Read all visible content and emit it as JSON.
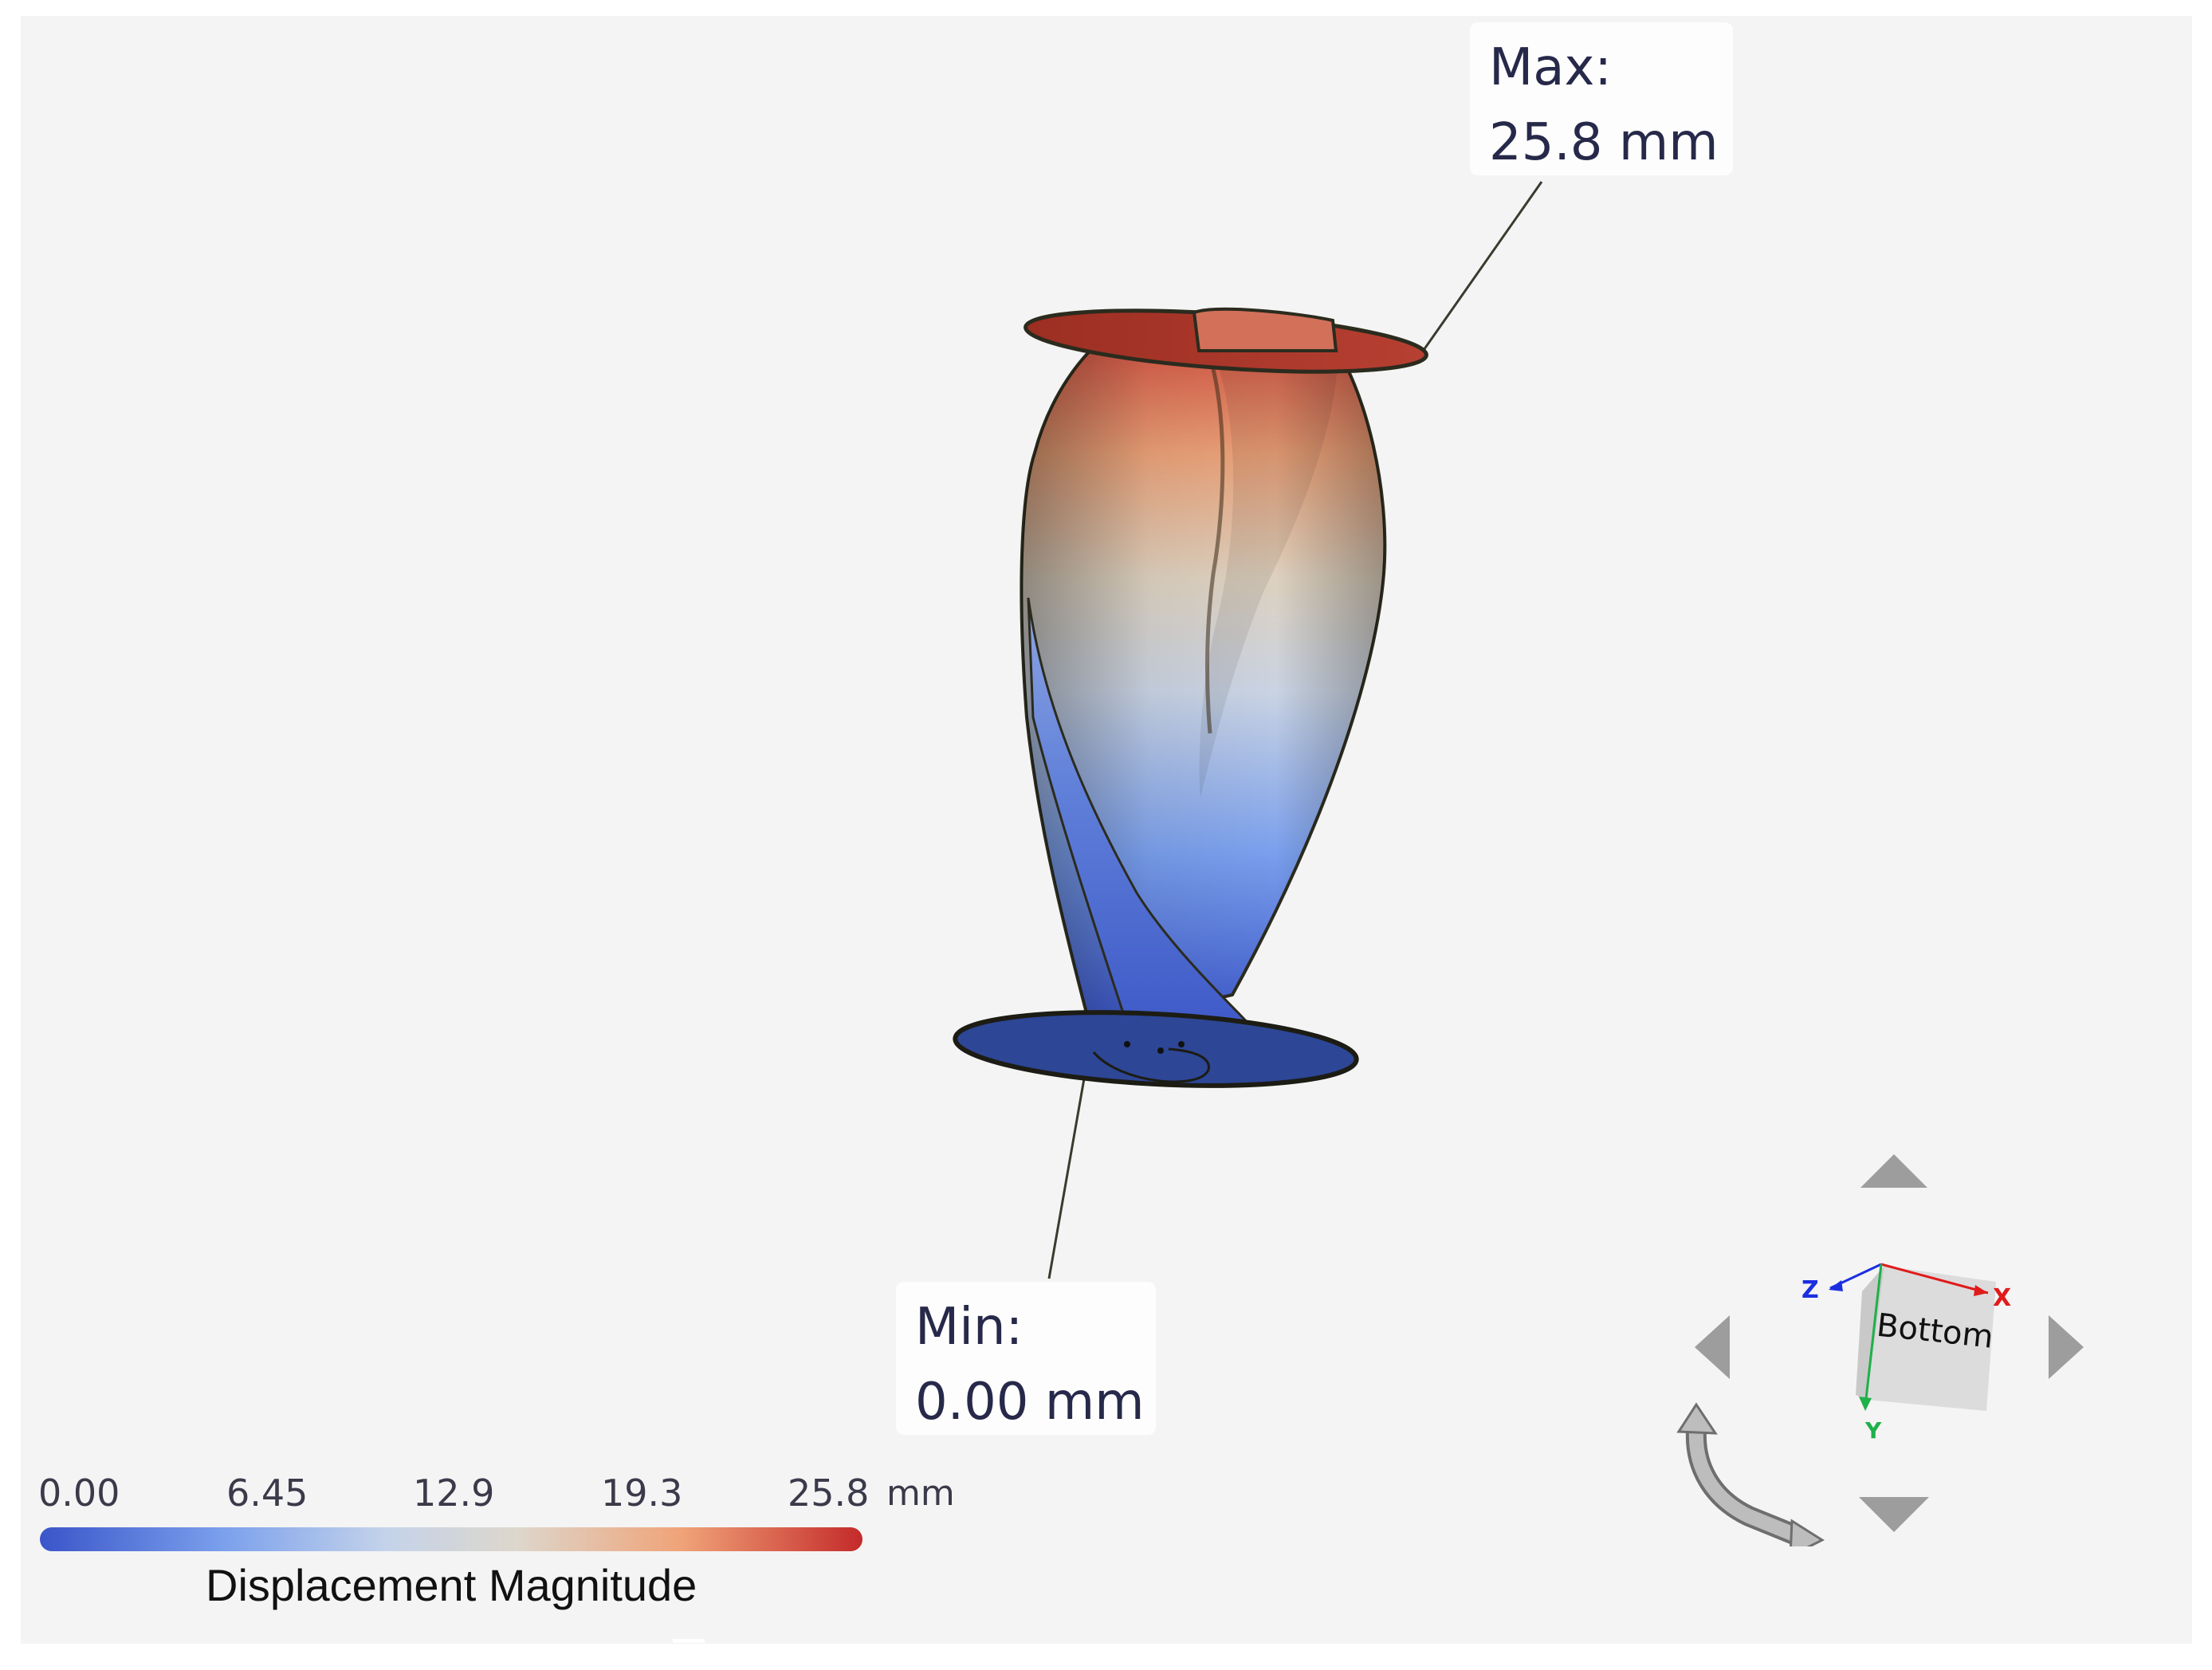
{
  "annotations": {
    "max": {
      "label": "Max:",
      "value": "25.8 mm"
    },
    "min": {
      "label": "Min:",
      "value": "0.00 mm"
    }
  },
  "legend": {
    "ticks": [
      "0.00",
      "6.45",
      "12.9",
      "19.3",
      "25.8"
    ],
    "unit": "mm",
    "title": "Displacement Magnitude",
    "range": [
      0,
      25.8
    ],
    "colors": [
      "#3a55c9",
      "#7a9fec",
      "#c4d3ea",
      "#ddd7cc",
      "#f0a378",
      "#c42a2a"
    ]
  },
  "view_cube": {
    "face_label": "Bottom",
    "axes": {
      "x": "X",
      "y": "Y",
      "z": "Z"
    },
    "axis_colors": {
      "x": "#e01b1b",
      "y": "#1fb04a",
      "z": "#1b2fe0"
    }
  },
  "icons": [
    "arrow-up-icon",
    "arrow-down-icon",
    "arrow-left-icon",
    "arrow-right-icon",
    "rotate-icon"
  ]
}
